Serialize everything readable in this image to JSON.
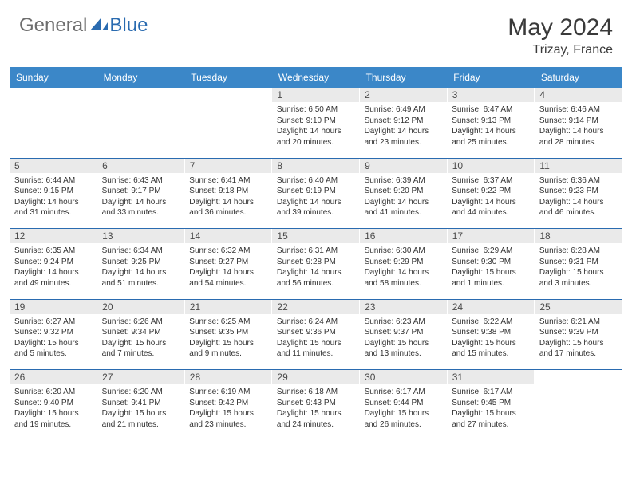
{
  "logo": {
    "text1": "General",
    "text2": "Blue"
  },
  "title": "May 2024",
  "location": "Trizay, France",
  "colors": {
    "header_bg": "#3b87c8",
    "header_text": "#ffffff",
    "daynum_bg": "#eaeaea",
    "border": "#2a6bb0",
    "logo_gray": "#6e6e6e",
    "logo_blue": "#2a6bb0"
  },
  "daysOfWeek": [
    "Sunday",
    "Monday",
    "Tuesday",
    "Wednesday",
    "Thursday",
    "Friday",
    "Saturday"
  ],
  "weeks": [
    [
      null,
      null,
      null,
      {
        "n": "1",
        "sr": "6:50 AM",
        "ss": "9:10 PM",
        "dh": "14",
        "dm": "20"
      },
      {
        "n": "2",
        "sr": "6:49 AM",
        "ss": "9:12 PM",
        "dh": "14",
        "dm": "23"
      },
      {
        "n": "3",
        "sr": "6:47 AM",
        "ss": "9:13 PM",
        "dh": "14",
        "dm": "25"
      },
      {
        "n": "4",
        "sr": "6:46 AM",
        "ss": "9:14 PM",
        "dh": "14",
        "dm": "28"
      }
    ],
    [
      {
        "n": "5",
        "sr": "6:44 AM",
        "ss": "9:15 PM",
        "dh": "14",
        "dm": "31"
      },
      {
        "n": "6",
        "sr": "6:43 AM",
        "ss": "9:17 PM",
        "dh": "14",
        "dm": "33"
      },
      {
        "n": "7",
        "sr": "6:41 AM",
        "ss": "9:18 PM",
        "dh": "14",
        "dm": "36"
      },
      {
        "n": "8",
        "sr": "6:40 AM",
        "ss": "9:19 PM",
        "dh": "14",
        "dm": "39"
      },
      {
        "n": "9",
        "sr": "6:39 AM",
        "ss": "9:20 PM",
        "dh": "14",
        "dm": "41"
      },
      {
        "n": "10",
        "sr": "6:37 AM",
        "ss": "9:22 PM",
        "dh": "14",
        "dm": "44"
      },
      {
        "n": "11",
        "sr": "6:36 AM",
        "ss": "9:23 PM",
        "dh": "14",
        "dm": "46"
      }
    ],
    [
      {
        "n": "12",
        "sr": "6:35 AM",
        "ss": "9:24 PM",
        "dh": "14",
        "dm": "49"
      },
      {
        "n": "13",
        "sr": "6:34 AM",
        "ss": "9:25 PM",
        "dh": "14",
        "dm": "51"
      },
      {
        "n": "14",
        "sr": "6:32 AM",
        "ss": "9:27 PM",
        "dh": "14",
        "dm": "54"
      },
      {
        "n": "15",
        "sr": "6:31 AM",
        "ss": "9:28 PM",
        "dh": "14",
        "dm": "56"
      },
      {
        "n": "16",
        "sr": "6:30 AM",
        "ss": "9:29 PM",
        "dh": "14",
        "dm": "58"
      },
      {
        "n": "17",
        "sr": "6:29 AM",
        "ss": "9:30 PM",
        "dh": "15",
        "dm": "1"
      },
      {
        "n": "18",
        "sr": "6:28 AM",
        "ss": "9:31 PM",
        "dh": "15",
        "dm": "3"
      }
    ],
    [
      {
        "n": "19",
        "sr": "6:27 AM",
        "ss": "9:32 PM",
        "dh": "15",
        "dm": "5"
      },
      {
        "n": "20",
        "sr": "6:26 AM",
        "ss": "9:34 PM",
        "dh": "15",
        "dm": "7"
      },
      {
        "n": "21",
        "sr": "6:25 AM",
        "ss": "9:35 PM",
        "dh": "15",
        "dm": "9"
      },
      {
        "n": "22",
        "sr": "6:24 AM",
        "ss": "9:36 PM",
        "dh": "15",
        "dm": "11"
      },
      {
        "n": "23",
        "sr": "6:23 AM",
        "ss": "9:37 PM",
        "dh": "15",
        "dm": "13"
      },
      {
        "n": "24",
        "sr": "6:22 AM",
        "ss": "9:38 PM",
        "dh": "15",
        "dm": "15"
      },
      {
        "n": "25",
        "sr": "6:21 AM",
        "ss": "9:39 PM",
        "dh": "15",
        "dm": "17"
      }
    ],
    [
      {
        "n": "26",
        "sr": "6:20 AM",
        "ss": "9:40 PM",
        "dh": "15",
        "dm": "19"
      },
      {
        "n": "27",
        "sr": "6:20 AM",
        "ss": "9:41 PM",
        "dh": "15",
        "dm": "21"
      },
      {
        "n": "28",
        "sr": "6:19 AM",
        "ss": "9:42 PM",
        "dh": "15",
        "dm": "23"
      },
      {
        "n": "29",
        "sr": "6:18 AM",
        "ss": "9:43 PM",
        "dh": "15",
        "dm": "24"
      },
      {
        "n": "30",
        "sr": "6:17 AM",
        "ss": "9:44 PM",
        "dh": "15",
        "dm": "26"
      },
      {
        "n": "31",
        "sr": "6:17 AM",
        "ss": "9:45 PM",
        "dh": "15",
        "dm": "27"
      },
      null
    ]
  ],
  "labels": {
    "sunrise": "Sunrise:",
    "sunset": "Sunset:",
    "daylight1": "Daylight:",
    "hours": "hours",
    "and": "and",
    "minutes": "minutes."
  }
}
